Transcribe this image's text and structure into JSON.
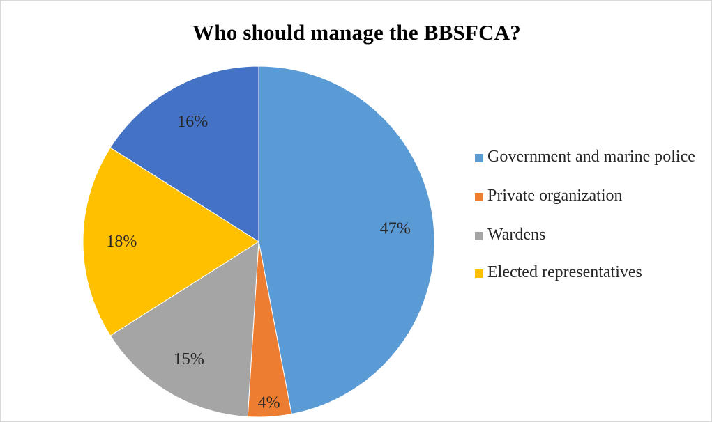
{
  "chart_data": {
    "type": "pie",
    "title": "Who should manage the BBSFCA?",
    "categories": [
      "Government and marine police",
      "Private organization",
      "Wardens",
      "Elected representatives",
      ""
    ],
    "values": [
      47,
      4,
      15,
      18,
      16
    ],
    "labels": [
      "47%",
      "4%",
      "15%",
      "18%",
      "16%"
    ],
    "colors": [
      "#5b9bd5",
      "#ed7d31",
      "#a5a5a5",
      "#ffc000",
      "#4472c4"
    ],
    "legend_position": "right",
    "start": "12 o'clock",
    "direction": "clockwise"
  }
}
